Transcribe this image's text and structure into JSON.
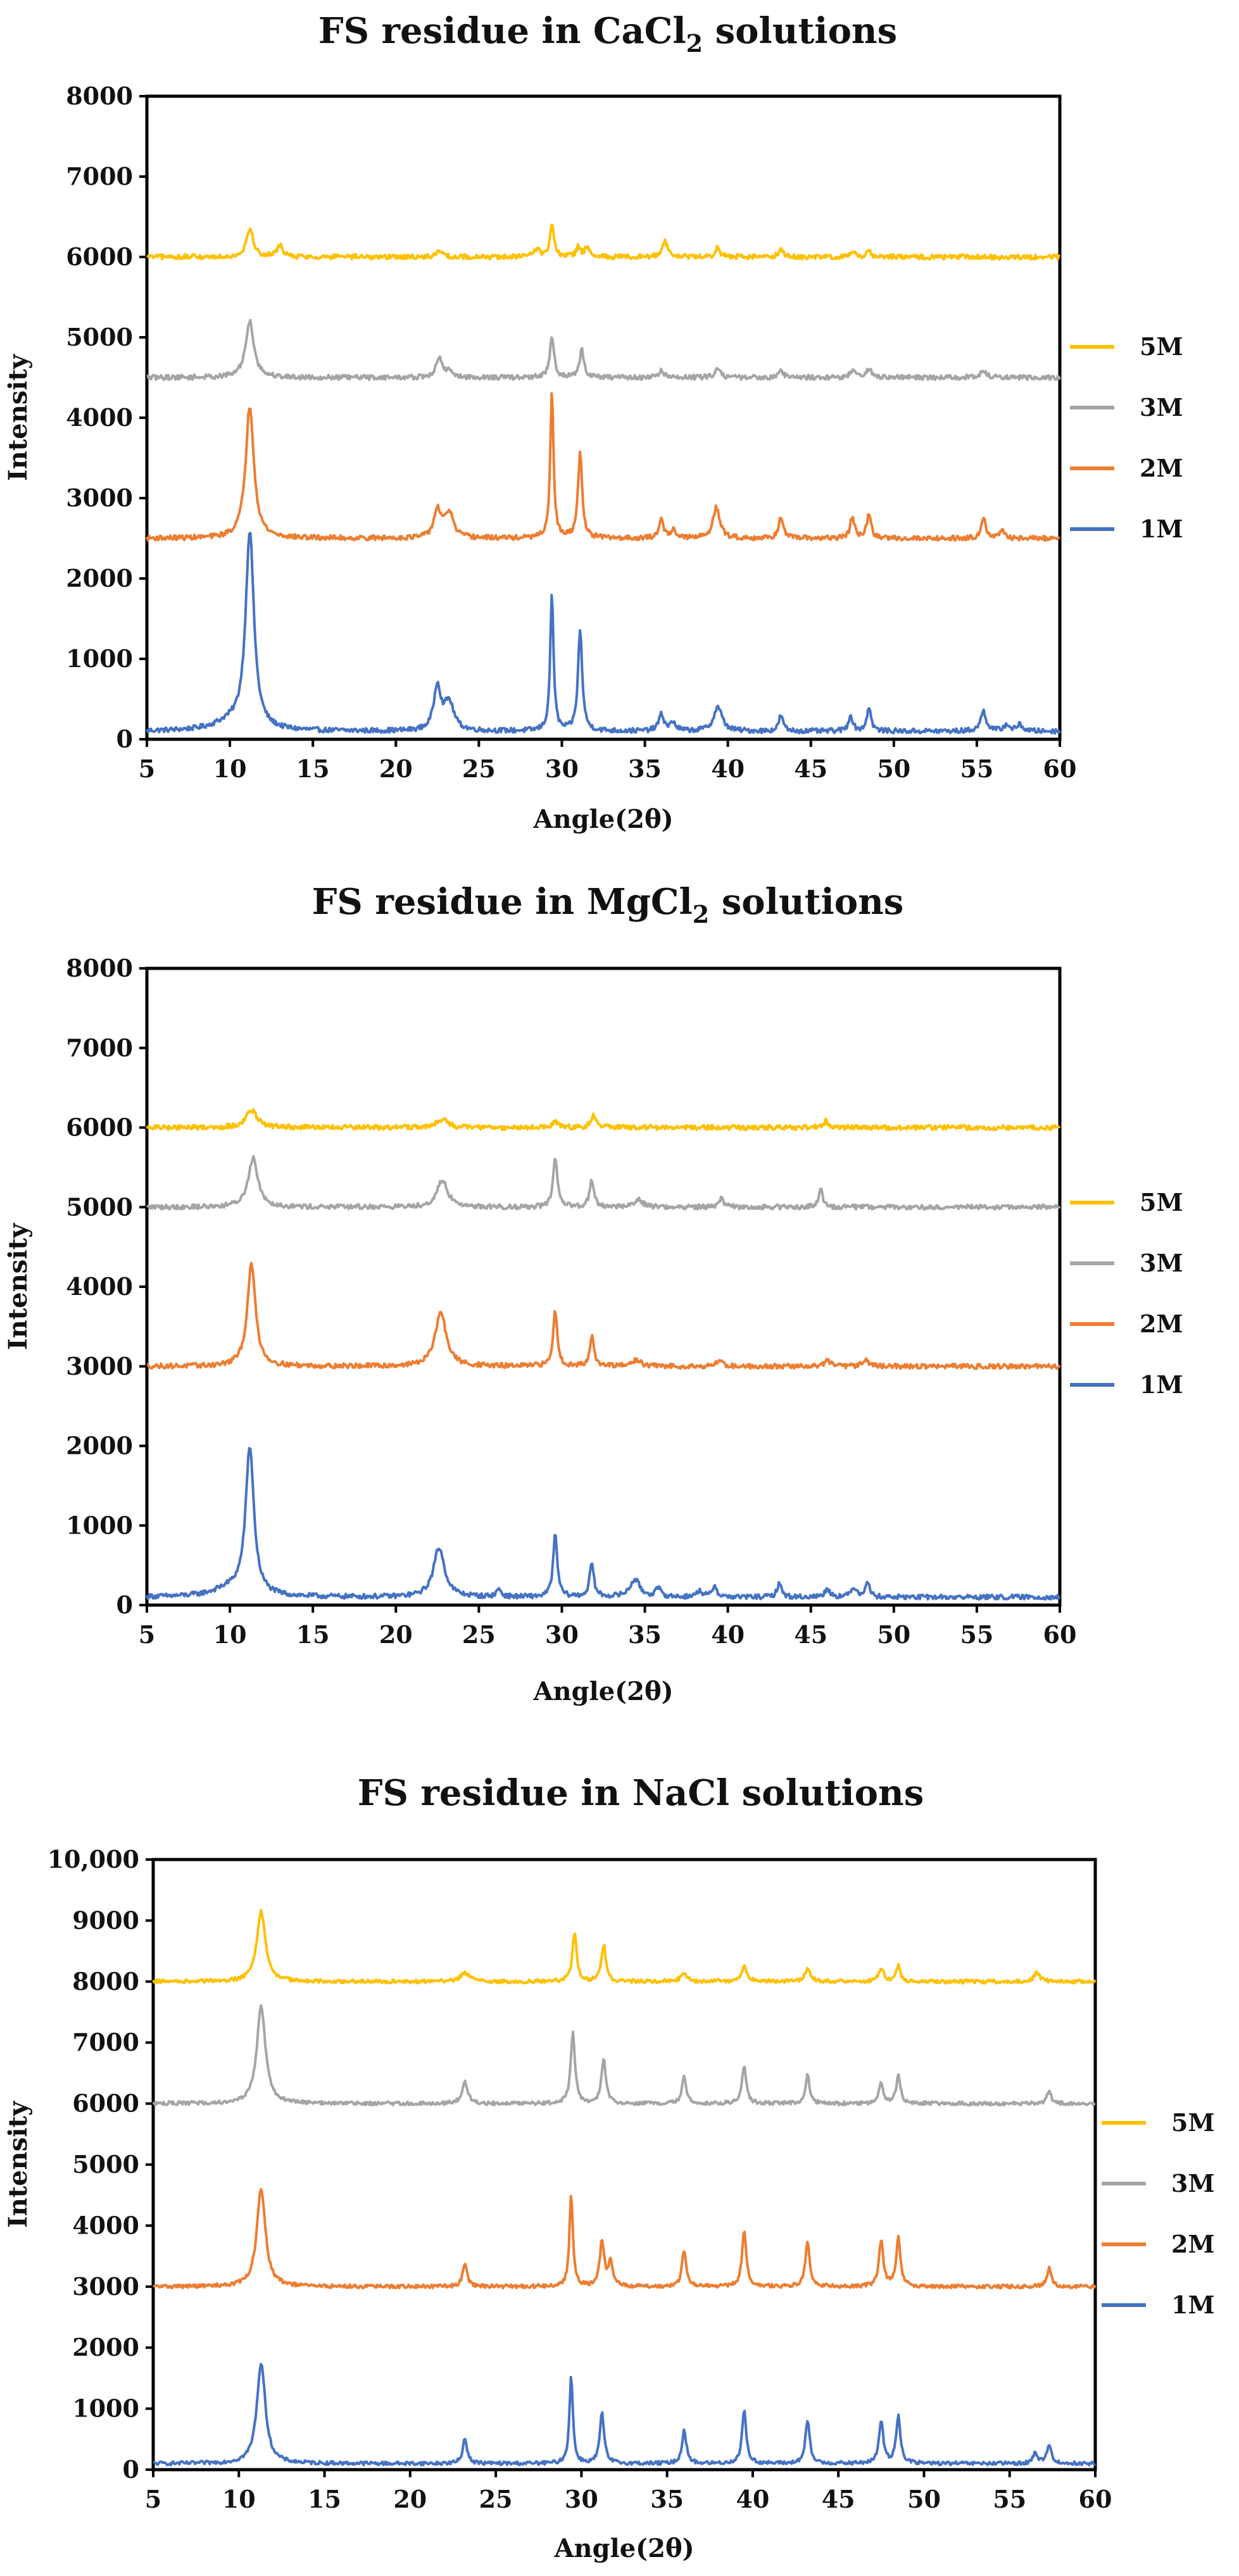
{
  "chart_data": [
    {
      "type": "line",
      "title_main": "FS residue in CaCl",
      "title_sub": "2",
      "title_tail": " solutions",
      "xlabel": "Angle(2θ)",
      "ylabel": "Intensity",
      "xlim": [
        5,
        60
      ],
      "ylim": [
        0,
        8000
      ],
      "xticks": [
        "5",
        "10",
        "15",
        "20",
        "25",
        "30",
        "35",
        "40",
        "45",
        "50",
        "55",
        "60"
      ],
      "yticks": [
        "0",
        "1000",
        "2000",
        "3000",
        "4000",
        "5000",
        "6000",
        "7000",
        "8000"
      ],
      "legend": [
        "5M",
        "3M",
        "2M",
        "1M"
      ],
      "series": [
        {
          "name": "5M",
          "color": "#FFC000",
          "baseline": 6000,
          "noise": 30,
          "peaks": [
            [
              11.2,
              350,
              0.25
            ],
            [
              13.0,
              150,
              0.2
            ],
            [
              22.6,
              80,
              0.2
            ],
            [
              28.5,
              100,
              0.2
            ],
            [
              29.4,
              400,
              0.15
            ],
            [
              31.0,
              120,
              0.15
            ],
            [
              31.5,
              120,
              0.15
            ],
            [
              36.2,
              200,
              0.2
            ],
            [
              39.4,
              120,
              0.15
            ],
            [
              43.2,
              100,
              0.15
            ],
            [
              47.5,
              80,
              0.15
            ],
            [
              48.5,
              80,
              0.15
            ]
          ]
        },
        {
          "name": "3M",
          "color": "#A5A5A5",
          "baseline": 4500,
          "noise": 30,
          "peaks": [
            [
              11.2,
              700,
              0.3
            ],
            [
              22.6,
              250,
              0.2
            ],
            [
              23.2,
              100,
              0.2
            ],
            [
              29.4,
              520,
              0.15
            ],
            [
              31.2,
              350,
              0.15
            ],
            [
              36.0,
              80,
              0.2
            ],
            [
              39.4,
              120,
              0.2
            ],
            [
              43.2,
              80,
              0.2
            ],
            [
              47.5,
              80,
              0.2
            ],
            [
              48.5,
              100,
              0.2
            ],
            [
              55.4,
              80,
              0.2
            ]
          ]
        },
        {
          "name": "2M",
          "color": "#ED7D31",
          "baseline": 2500,
          "noise": 30,
          "peaks": [
            [
              11.2,
              1650,
              0.3
            ],
            [
              22.5,
              350,
              0.25
            ],
            [
              23.2,
              320,
              0.3
            ],
            [
              29.4,
              1800,
              0.12
            ],
            [
              31.1,
              1050,
              0.15
            ],
            [
              36.0,
              250,
              0.15
            ],
            [
              36.7,
              120,
              0.15
            ],
            [
              39.3,
              380,
              0.25
            ],
            [
              43.2,
              280,
              0.15
            ],
            [
              47.5,
              270,
              0.15
            ],
            [
              48.5,
              300,
              0.15
            ],
            [
              55.4,
              280,
              0.15
            ],
            [
              56.5,
              100,
              0.15
            ]
          ]
        },
        {
          "name": "1M",
          "color": "#4472C4",
          "baseline": 100,
          "noise": 30,
          "peaks": [
            [
              10.0,
              100,
              1.2
            ],
            [
              11.2,
              2450,
              0.3
            ],
            [
              22.5,
              550,
              0.25
            ],
            [
              23.2,
              350,
              0.35
            ],
            [
              29.4,
              1700,
              0.12
            ],
            [
              31.1,
              1250,
              0.15
            ],
            [
              36.0,
              200,
              0.2
            ],
            [
              36.7,
              100,
              0.2
            ],
            [
              39.4,
              300,
              0.3
            ],
            [
              43.2,
              200,
              0.15
            ],
            [
              47.4,
              200,
              0.15
            ],
            [
              48.5,
              300,
              0.15
            ],
            [
              55.4,
              250,
              0.2
            ],
            [
              56.8,
              80,
              0.2
            ],
            [
              57.6,
              80,
              0.2
            ]
          ]
        }
      ]
    },
    {
      "type": "line",
      "title_main": "FS residue in MgCl",
      "title_sub": "2",
      "title_tail": " solutions",
      "xlabel": "Angle(2θ)",
      "ylabel": "Intensity",
      "xlim": [
        5,
        60
      ],
      "ylim": [
        0,
        8000
      ],
      "xticks": [
        "5",
        "10",
        "15",
        "20",
        "25",
        "30",
        "35",
        "40",
        "45",
        "50",
        "55",
        "60"
      ],
      "yticks": [
        "0",
        "1000",
        "2000",
        "3000",
        "4000",
        "5000",
        "6000",
        "7000",
        "8000"
      ],
      "legend": [
        "5M",
        "3M",
        "2M",
        "1M"
      ],
      "series": [
        {
          "name": "5M",
          "color": "#FFC000",
          "baseline": 6000,
          "noise": 30,
          "peaks": [
            [
              11.3,
              220,
              0.4
            ],
            [
              22.8,
              100,
              0.4
            ],
            [
              29.6,
              80,
              0.2
            ],
            [
              31.9,
              150,
              0.2
            ],
            [
              45.9,
              80,
              0.2
            ]
          ]
        },
        {
          "name": "3M",
          "color": "#A5A5A5",
          "baseline": 5000,
          "noise": 30,
          "peaks": [
            [
              11.4,
              620,
              0.35
            ],
            [
              22.8,
              330,
              0.4
            ],
            [
              29.6,
              620,
              0.15
            ],
            [
              31.8,
              350,
              0.15
            ],
            [
              34.6,
              100,
              0.3
            ],
            [
              39.6,
              100,
              0.2
            ],
            [
              45.6,
              220,
              0.15
            ]
          ]
        },
        {
          "name": "2M",
          "color": "#ED7D31",
          "baseline": 3000,
          "noise": 30,
          "peaks": [
            [
              11.3,
              1280,
              0.3
            ],
            [
              22.7,
              680,
              0.4
            ],
            [
              29.6,
              700,
              0.15
            ],
            [
              31.8,
              380,
              0.15
            ],
            [
              34.5,
              80,
              0.3
            ],
            [
              39.5,
              80,
              0.2
            ],
            [
              46.0,
              80,
              0.2
            ],
            [
              48.3,
              100,
              0.2
            ]
          ]
        },
        {
          "name": "1M",
          "color": "#4472C4",
          "baseline": 100,
          "noise": 30,
          "peaks": [
            [
              10.0,
              100,
              1.2
            ],
            [
              11.2,
              1850,
              0.3
            ],
            [
              22.6,
              620,
              0.4
            ],
            [
              26.2,
              100,
              0.15
            ],
            [
              29.6,
              780,
              0.15
            ],
            [
              31.8,
              420,
              0.15
            ],
            [
              34.4,
              220,
              0.35
            ],
            [
              35.8,
              100,
              0.2
            ],
            [
              38.3,
              80,
              0.2
            ],
            [
              39.2,
              150,
              0.15
            ],
            [
              43.1,
              180,
              0.15
            ],
            [
              46.0,
              100,
              0.2
            ],
            [
              47.6,
              120,
              0.2
            ],
            [
              48.4,
              200,
              0.15
            ]
          ]
        }
      ]
    },
    {
      "type": "line",
      "title_main": "FS residue in NaCl solutions",
      "title_sub": "",
      "title_tail": "",
      "xlabel": "Angle(2θ)",
      "ylabel": "Intensity",
      "xlim": [
        5,
        60
      ],
      "ylim": [
        0,
        10000
      ],
      "xticks": [
        "5",
        "10",
        "15",
        "20",
        "25",
        "30",
        "35",
        "40",
        "45",
        "50",
        "55",
        "60"
      ],
      "yticks": [
        "0",
        "1000",
        "2000",
        "3000",
        "4000",
        "5000",
        "6000",
        "7000",
        "8000",
        "9000",
        "10,000"
      ],
      "legend": [
        "5M",
        "3M",
        "2M",
        "1M"
      ],
      "series": [
        {
          "name": "5M",
          "color": "#FFC000",
          "baseline": 8000,
          "noise": 30,
          "peaks": [
            [
              11.3,
              1150,
              0.3
            ],
            [
              23.2,
              150,
              0.3
            ],
            [
              29.6,
              800,
              0.15
            ],
            [
              31.3,
              600,
              0.15
            ],
            [
              36.0,
              150,
              0.2
            ],
            [
              39.5,
              250,
              0.2
            ],
            [
              43.2,
              200,
              0.2
            ],
            [
              47.5,
              200,
              0.2
            ],
            [
              48.5,
              250,
              0.15
            ],
            [
              56.6,
              150,
              0.2
            ]
          ]
        },
        {
          "name": "3M",
          "color": "#A5A5A5",
          "baseline": 6000,
          "noise": 30,
          "peaks": [
            [
              11.3,
              1600,
              0.3
            ],
            [
              23.2,
              350,
              0.2
            ],
            [
              29.5,
              1150,
              0.15
            ],
            [
              31.3,
              750,
              0.15
            ],
            [
              36.0,
              450,
              0.15
            ],
            [
              39.5,
              600,
              0.15
            ],
            [
              43.2,
              450,
              0.15
            ],
            [
              47.5,
              350,
              0.15
            ],
            [
              48.5,
              450,
              0.15
            ],
            [
              57.3,
              200,
              0.15
            ]
          ]
        },
        {
          "name": "2M",
          "color": "#ED7D31",
          "baseline": 3000,
          "noise": 30,
          "peaks": [
            [
              11.3,
              1600,
              0.3
            ],
            [
              23.2,
              400,
              0.15
            ],
            [
              29.4,
              1500,
              0.12
            ],
            [
              31.2,
              750,
              0.15
            ],
            [
              31.7,
              400,
              0.15
            ],
            [
              36.0,
              600,
              0.15
            ],
            [
              39.5,
              900,
              0.15
            ],
            [
              43.2,
              750,
              0.15
            ],
            [
              47.5,
              750,
              0.15
            ],
            [
              48.5,
              800,
              0.15
            ],
            [
              57.3,
              300,
              0.15
            ]
          ]
        },
        {
          "name": "1M",
          "color": "#4472C4",
          "baseline": 100,
          "noise": 30,
          "peaks": [
            [
              11.3,
              1650,
              0.3
            ],
            [
              23.2,
              420,
              0.15
            ],
            [
              29.4,
              1450,
              0.12
            ],
            [
              31.2,
              820,
              0.15
            ],
            [
              36.0,
              550,
              0.15
            ],
            [
              39.5,
              860,
              0.15
            ],
            [
              43.2,
              700,
              0.15
            ],
            [
              47.5,
              700,
              0.15
            ],
            [
              48.5,
              780,
              0.15
            ],
            [
              56.5,
              180,
              0.15
            ],
            [
              57.3,
              320,
              0.15
            ]
          ]
        }
      ]
    }
  ]
}
